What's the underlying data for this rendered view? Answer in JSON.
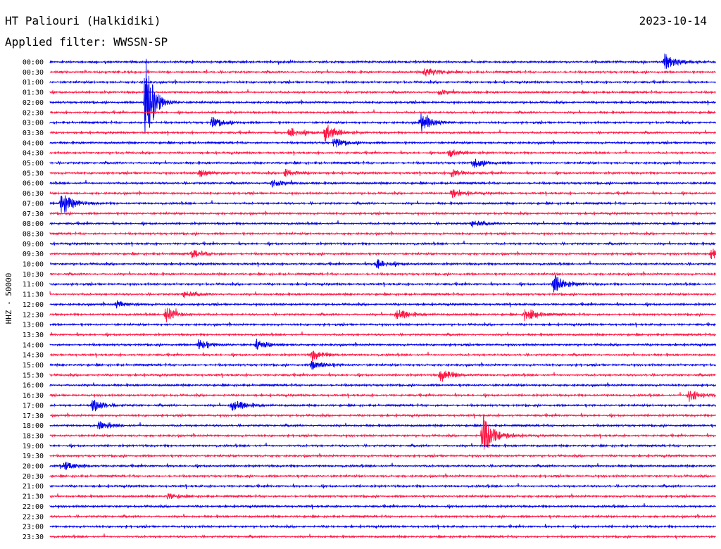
{
  "header": {
    "station": "HT Paliouri (Halkidiki)",
    "date": "2023-10-14",
    "filter": "Applied filter: WWSSN-SP"
  },
  "chart_data": {
    "type": "line",
    "title": "HT Paliouri (Halkidiki)",
    "ylabel": "HHZ - 50000",
    "colors": [
      "#0000ee",
      "#ff1744"
    ],
    "rows": [
      "00:00",
      "00:30",
      "01:00",
      "01:30",
      "02:00",
      "02:30",
      "03:00",
      "03:30",
      "04:00",
      "04:30",
      "05:00",
      "05:30",
      "06:00",
      "06:30",
      "07:00",
      "07:30",
      "08:00",
      "08:30",
      "09:00",
      "09:30",
      "10:00",
      "10:30",
      "11:00",
      "11:30",
      "12:00",
      "12:30",
      "13:00",
      "13:30",
      "14:00",
      "14:30",
      "15:00",
      "15:30",
      "16:00",
      "16:30",
      "17:00",
      "17:30",
      "18:00",
      "18:30",
      "19:00",
      "19:30",
      "20:00",
      "20:30",
      "21:00",
      "21:30",
      "22:00",
      "22:30",
      "23:00",
      "23:30"
    ],
    "x_unit": "minutes within row",
    "x_range": [
      0,
      30
    ],
    "events": [
      {
        "row": "00:00",
        "minute": 27.7,
        "amplitude": 12
      },
      {
        "row": "00:30",
        "minute": 16.9,
        "amplitude": 8
      },
      {
        "row": "01:30",
        "minute": 17.5,
        "amplitude": 4
      },
      {
        "row": "02:00",
        "minute": 4.3,
        "amplitude": 70
      },
      {
        "row": "03:00",
        "minute": 7.3,
        "amplitude": 8
      },
      {
        "row": "03:00",
        "minute": 16.7,
        "amplitude": 14
      },
      {
        "row": "03:30",
        "minute": 10.8,
        "amplitude": 8
      },
      {
        "row": "03:30",
        "minute": 12.4,
        "amplitude": 14
      },
      {
        "row": "04:00",
        "minute": 12.8,
        "amplitude": 7
      },
      {
        "row": "04:30",
        "minute": 18.0,
        "amplitude": 6
      },
      {
        "row": "05:00",
        "minute": 19.1,
        "amplitude": 7
      },
      {
        "row": "05:30",
        "minute": 6.7,
        "amplitude": 6
      },
      {
        "row": "05:30",
        "minute": 10.6,
        "amplitude": 6
      },
      {
        "row": "05:30",
        "minute": 18.1,
        "amplitude": 6
      },
      {
        "row": "06:00",
        "minute": 10.0,
        "amplitude": 6
      },
      {
        "row": "06:30",
        "minute": 18.1,
        "amplitude": 6
      },
      {
        "row": "07:00",
        "minute": 0.5,
        "amplitude": 20
      },
      {
        "row": "08:00",
        "minute": 19.0,
        "amplitude": 6
      },
      {
        "row": "09:30",
        "minute": 6.4,
        "amplitude": 6
      },
      {
        "row": "09:30",
        "minute": 29.8,
        "amplitude": 8
      },
      {
        "row": "10:00",
        "minute": 14.7,
        "amplitude": 7
      },
      {
        "row": "11:00",
        "minute": 22.7,
        "amplitude": 16
      },
      {
        "row": "11:30",
        "minute": 6.0,
        "amplitude": 6
      },
      {
        "row": "12:00",
        "minute": 3.0,
        "amplitude": 5
      },
      {
        "row": "12:30",
        "minute": 5.2,
        "amplitude": 12
      },
      {
        "row": "12:30",
        "minute": 15.6,
        "amplitude": 9
      },
      {
        "row": "12:30",
        "minute": 21.4,
        "amplitude": 12
      },
      {
        "row": "14:00",
        "minute": 6.7,
        "amplitude": 7
      },
      {
        "row": "14:00",
        "minute": 9.3,
        "amplitude": 7
      },
      {
        "row": "14:30",
        "minute": 11.8,
        "amplitude": 8
      },
      {
        "row": "15:00",
        "minute": 11.8,
        "amplitude": 7
      },
      {
        "row": "15:30",
        "minute": 17.6,
        "amplitude": 10
      },
      {
        "row": "16:30",
        "minute": 28.8,
        "amplitude": 10
      },
      {
        "row": "17:00",
        "minute": 1.9,
        "amplitude": 10
      },
      {
        "row": "17:00",
        "minute": 8.2,
        "amplitude": 10
      },
      {
        "row": "18:00",
        "minute": 2.2,
        "amplitude": 6
      },
      {
        "row": "18:30",
        "minute": 19.5,
        "amplitude": 30
      },
      {
        "row": "20:00",
        "minute": 0.6,
        "amplitude": 7
      },
      {
        "row": "21:30",
        "minute": 5.3,
        "amplitude": 4
      }
    ]
  }
}
